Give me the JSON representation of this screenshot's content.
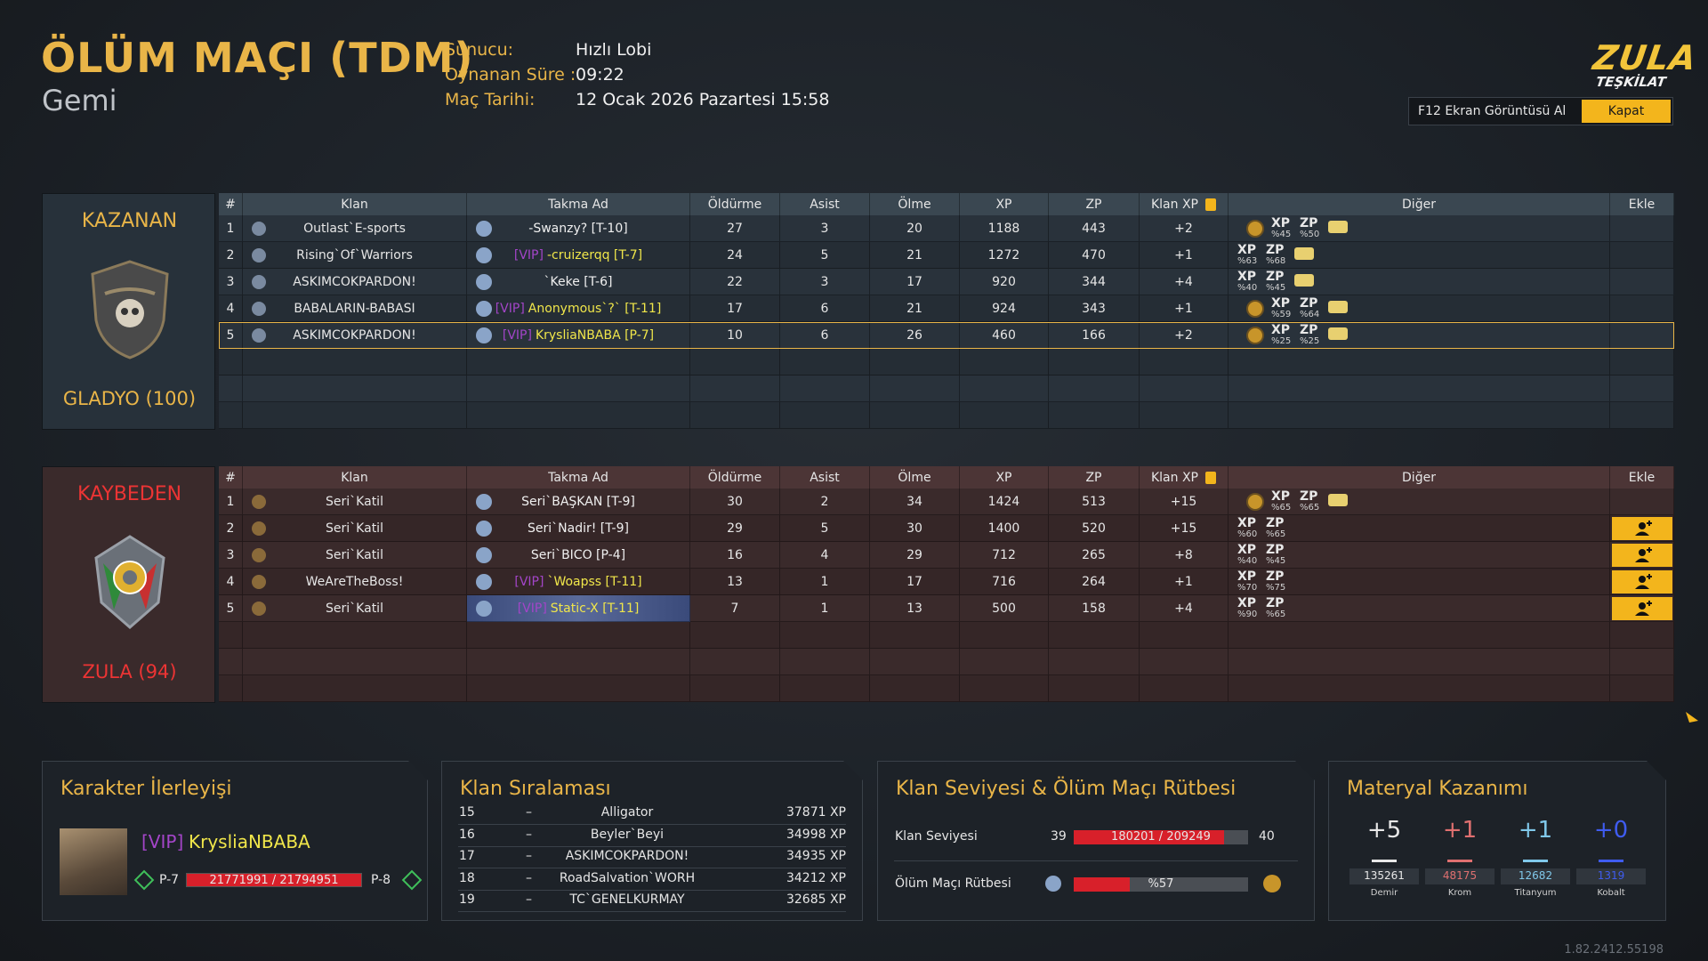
{
  "header": {
    "title": "ÖLÜM MAÇI (TDM)",
    "map": "Gemi",
    "info": [
      {
        "label": "Sunucu:",
        "value": "Hızlı Lobi"
      },
      {
        "label": "Oynanan Süre :",
        "value": "09:22"
      },
      {
        "label": "Maç Tarihi:",
        "value": "12 Ocak 2026 Pazartesi 15:58"
      }
    ],
    "logo": [
      "ZULA",
      "TEŞKİLAT"
    ],
    "screenshot_button": "F12 Ekran Görüntüsü Al",
    "close_button": "Kapat"
  },
  "columns": [
    "#",
    "Klan",
    "Takma Ad",
    "Öldürme",
    "Asist",
    "Ölme",
    "XP",
    "ZP",
    "Klan XP",
    "Diğer",
    "Ekle"
  ],
  "teams": [
    {
      "result": "KAZANAN",
      "name": "GLADYO (100)",
      "rows": [
        {
          "rank": 1,
          "clan": "Outlast`E-sports",
          "prefix": null,
          "nick": "-Swanzy? [T-10]",
          "kills": 27,
          "assists": 3,
          "deaths": 20,
          "xp": 1188,
          "zp": 443,
          "clan_xp": "+2",
          "badge": true,
          "stars": true,
          "bonus": [
            {
              "label": "XP",
              "value": "%45"
            },
            {
              "label": "ZP",
              "value": "%50"
            }
          ]
        },
        {
          "rank": 2,
          "clan": "Rising`Of`Warriors",
          "prefix": "[VIP]",
          "nick": "-cruizerqq [T-7]",
          "kills": 24,
          "assists": 5,
          "deaths": 21,
          "xp": 1272,
          "zp": 470,
          "clan_xp": "+1",
          "badge": false,
          "stars": true,
          "bonus": [
            {
              "label": "XP",
              "value": "%63"
            },
            {
              "label": "ZP",
              "value": "%68"
            }
          ]
        },
        {
          "rank": 3,
          "clan": "ASKIMCOKPARDON!",
          "prefix": null,
          "nick": "`Keke [T-6]",
          "kills": 22,
          "assists": 3,
          "deaths": 17,
          "xp": 920,
          "zp": 344,
          "clan_xp": "+4",
          "badge": false,
          "stars": true,
          "bonus": [
            {
              "label": "XP",
              "value": "%40"
            },
            {
              "label": "ZP",
              "value": "%45"
            }
          ]
        },
        {
          "rank": 4,
          "clan": "BABALARIN-BABASI",
          "prefix": "[VIP]",
          "nick": "Anonymous`?` [T-11]",
          "kills": 17,
          "assists": 6,
          "deaths": 21,
          "xp": 924,
          "zp": 343,
          "clan_xp": "+1",
          "badge": true,
          "stars": true,
          "bonus": [
            {
              "label": "XP",
              "value": "%59"
            },
            {
              "label": "ZP",
              "value": "%64"
            }
          ]
        },
        {
          "rank": 5,
          "clan": "ASKIMCOKPARDON!",
          "prefix": "[VIP]",
          "nick": "KrysliaNBABA [P-7]",
          "kills": 10,
          "assists": 6,
          "deaths": 26,
          "xp": 460,
          "zp": 166,
          "clan_xp": "+2",
          "badge": true,
          "stars": true,
          "self": true,
          "bonus": [
            {
              "label": "XP",
              "value": "%25"
            },
            {
              "label": "ZP",
              "value": "%25"
            }
          ]
        }
      ]
    },
    {
      "result": "KAYBEDEN",
      "name": "ZULA (94)",
      "rows": [
        {
          "rank": 1,
          "clan": "Seri`Katil",
          "prefix": null,
          "nick": "Seri`BAŞKAN [T-9]",
          "kills": 30,
          "assists": 2,
          "deaths": 34,
          "xp": 1424,
          "zp": 513,
          "clan_xp": "+15",
          "badge": true,
          "stars": true,
          "bonus": [
            {
              "label": "XP",
              "value": "%65"
            },
            {
              "label": "ZP",
              "value": "%65"
            }
          ]
        },
        {
          "rank": 2,
          "clan": "Seri`Katil",
          "prefix": null,
          "nick": "Seri`Nadir! [T-9]",
          "kills": 29,
          "assists": 5,
          "deaths": 30,
          "xp": 1400,
          "zp": 520,
          "clan_xp": "+15",
          "badge": false,
          "stars": false,
          "add": true,
          "bonus": [
            {
              "label": "XP",
              "value": "%60"
            },
            {
              "label": "ZP",
              "value": "%65"
            }
          ]
        },
        {
          "rank": 3,
          "clan": "Seri`Katil",
          "prefix": null,
          "nick": "Seri`BICO [P-4]",
          "kills": 16,
          "assists": 4,
          "deaths": 29,
          "xp": 712,
          "zp": 265,
          "clan_xp": "+8",
          "badge": false,
          "stars": false,
          "add": true,
          "bonus": [
            {
              "label": "XP",
              "value": "%40"
            },
            {
              "label": "ZP",
              "value": "%45"
            }
          ]
        },
        {
          "rank": 4,
          "clan": "WeAreTheBoss!",
          "prefix": "[VIP]",
          "nick": "`Woapss [T-11]",
          "kills": 13,
          "assists": 1,
          "deaths": 17,
          "xp": 716,
          "zp": 264,
          "clan_xp": "+1",
          "badge": false,
          "stars": false,
          "add": true,
          "bonus": [
            {
              "label": "XP",
              "value": "%70"
            },
            {
              "label": "ZP",
              "value": "%75"
            }
          ]
        },
        {
          "rank": 5,
          "clan": "Seri`Katil",
          "prefix": "[VIP]",
          "nick": "Static-X [T-11]",
          "kills": 7,
          "assists": 1,
          "deaths": 13,
          "xp": 500,
          "zp": 158,
          "clan_xp": "+4",
          "badge": false,
          "stars": false,
          "add": true,
          "bonus": [
            {
              "label": "XP",
              "value": "%90"
            },
            {
              "label": "ZP",
              "value": "%65"
            }
          ]
        }
      ]
    }
  ],
  "progress": {
    "title": "Karakter İlerleyişi",
    "prefix": "[VIP]",
    "name": "KrysliaNBABA",
    "level": "P-7",
    "xp": "21771991 / 21794951",
    "next_level": "P-8"
  },
  "clan_ranking": {
    "title": "Klan Sıralaması",
    "rows": [
      {
        "rank": 15,
        "dash": "–",
        "name": "Alligator",
        "xp": "37871 XP"
      },
      {
        "rank": 16,
        "dash": "–",
        "name": "Beyler`Beyi",
        "xp": "34998 XP"
      },
      {
        "rank": 17,
        "dash": "–",
        "name": "ASKIMCOKPARDON!",
        "xp": "34935 XP"
      },
      {
        "rank": 18,
        "dash": "–",
        "name": "RoadSalvation`WORH",
        "xp": "34212 XP"
      },
      {
        "rank": 19,
        "dash": "–",
        "name": "TC`GENELKURMAY",
        "xp": "32685 XP"
      }
    ]
  },
  "clan_level": {
    "title": "Klan Seviyesi & Ölüm Maçı Rütbesi",
    "level_label": "Klan Seviyesi",
    "level": 39,
    "level_xp": "180201 / 209249",
    "next_level": 40,
    "rank_label": "Ölüm Maçı Rütbesi",
    "rank_progress": "%57"
  },
  "materials": {
    "title": "Materyal Kazanımı",
    "items": [
      {
        "gain": "+5",
        "total": 135261,
        "name": "Demir",
        "color": "#e8e8e8"
      },
      {
        "gain": "+1",
        "total": 48175,
        "name": "Krom",
        "color": "#e07070"
      },
      {
        "gain": "+1",
        "total": 12682,
        "name": "Titanyum",
        "color": "#80c8ea"
      },
      {
        "gain": "+0",
        "total": 1319,
        "name": "Kobalt",
        "color": "#3f5cf0"
      }
    ]
  },
  "version": "1.82.2412.55198"
}
